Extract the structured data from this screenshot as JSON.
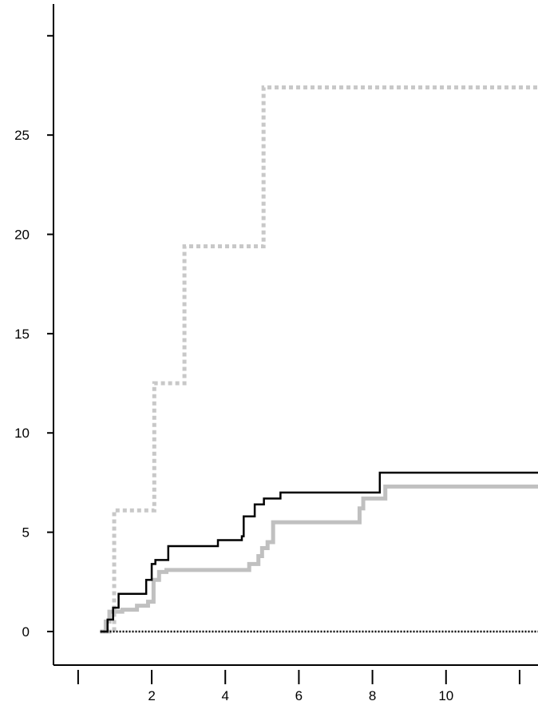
{
  "chart_data": {
    "type": "step",
    "xlim": [
      -0.67,
      12.5
    ],
    "xticks": [
      2,
      4,
      6,
      8,
      10
    ],
    "xticks_minor": [
      0,
      12
    ],
    "ylim": [
      -1.69,
      31.6
    ],
    "yticks": [
      0,
      5,
      10,
      15,
      20,
      25
    ],
    "yticks_minor": [
      30
    ],
    "series": [
      {
        "color": "#c8c8c8",
        "style": "dotted-thick",
        "x": [
          0.6,
          0.98,
          2.07,
          2.89,
          5.04,
          12.5
        ],
        "values": [
          0,
          6.1,
          12.5,
          19.4,
          27.4,
          27.4
        ]
      },
      {
        "color": "#c0c0c0",
        "style": "solid-thick",
        "x": [
          0.6,
          0.75,
          0.85,
          1.2,
          1.6,
          1.9,
          2.05,
          2.2,
          2.4,
          4.65,
          4.9,
          5.0,
          5.15,
          5.3,
          7.65,
          7.75,
          8.35,
          12.5
        ],
        "values": [
          0,
          0.5,
          1.0,
          1.1,
          1.3,
          1.5,
          2.6,
          3.0,
          3.1,
          3.4,
          3.8,
          4.2,
          4.5,
          5.5,
          6.2,
          6.7,
          7.3,
          7.3
        ]
      },
      {
        "color": "#000000",
        "style": "solid",
        "x": [
          0.6,
          0.8,
          0.95,
          1.1,
          1.75,
          1.85,
          2.0,
          2.1,
          2.45,
          3.5,
          3.8,
          4.45,
          4.5,
          4.8,
          5.05,
          5.5,
          8.2,
          12.5
        ],
        "values": [
          0,
          0.6,
          1.2,
          1.9,
          1.9,
          2.6,
          3.4,
          3.6,
          4.3,
          4.3,
          4.6,
          4.8,
          5.8,
          6.4,
          6.7,
          7.0,
          8.0,
          8.0
        ]
      },
      {
        "color": "#000000",
        "style": "dotted",
        "x": [
          0.6,
          12.5
        ],
        "values": [
          0,
          0
        ]
      }
    ]
  }
}
